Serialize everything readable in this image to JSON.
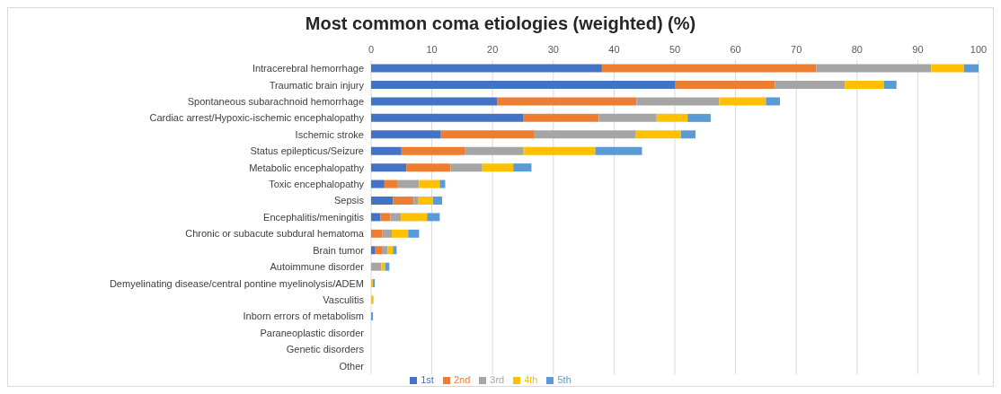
{
  "chart_data": {
    "type": "bar",
    "orientation": "horizontal",
    "stacked": true,
    "title": "Most common coma etiologies (weighted) (%)",
    "categories": [
      "Intracerebral hemorrhage",
      "Traumatic brain injury",
      "Spontaneous subarachnoid hemorrhage",
      "Cardiac arrest/Hypoxic-ischemic encephalopathy",
      "Ischemic stroke",
      "Status epilepticus/Seizure",
      "Metabolic encephalopathy",
      "Toxic encephalopathy",
      "Sepsis",
      "Encephalitis/meningitis",
      "Chronic or subacute subdural hematoma",
      "Brain tumor",
      "Autoimmune disorder",
      "Demyelinating disease/central pontine myelinolysis/ADEM",
      "Vasculitis",
      "Inborn errors of metabolism",
      "Paraneoplastic disorder",
      "Genetic disorders",
      "Other"
    ],
    "series": [
      {
        "name": "1st",
        "color": "#4472c4",
        "values": [
          38,
          50,
          20.8,
          25.1,
          11.5,
          5.0,
          5.8,
          2.2,
          3.6,
          1.5,
          0,
          0.7,
          0,
          0,
          0,
          0,
          0,
          0,
          0
        ]
      },
      {
        "name": "2nd",
        "color": "#ed7d31",
        "values": [
          35.3,
          16.5,
          22.9,
          12.4,
          15.4,
          10.4,
          7.3,
          2.2,
          3.4,
          1.7,
          1.8,
          1.2,
          0,
          0,
          0,
          0,
          0,
          0,
          0
        ]
      },
      {
        "name": "3rd",
        "color": "#a5a5a5",
        "values": [
          18.9,
          11.5,
          13.6,
          9.5,
          16.6,
          9.7,
          5.2,
          3.5,
          0.8,
          1.7,
          1.6,
          0.8,
          1.7,
          0,
          0,
          0,
          0,
          0,
          0
        ]
      },
      {
        "name": "4th",
        "color": "#ffc000",
        "values": [
          5.4,
          6.4,
          7.7,
          5.1,
          7.5,
          11.8,
          5.1,
          3.4,
          2.4,
          4.3,
          2.7,
          0.9,
          0.6,
          0.3,
          0.4,
          0,
          0,
          0,
          0
        ]
      },
      {
        "name": "5th",
        "color": "#5b9bd5",
        "values": [
          2.4,
          2.1,
          2.3,
          3.8,
          2.4,
          7.7,
          3.0,
          0.9,
          1.5,
          2.1,
          1.8,
          0.6,
          0.7,
          0.3,
          0,
          0.3,
          0,
          0,
          0
        ]
      }
    ],
    "xlim": [
      0,
      100
    ],
    "xticks": [
      0,
      10,
      20,
      30,
      40,
      50,
      60,
      70,
      80,
      90,
      100
    ],
    "grid": "x",
    "legend": "bottom"
  }
}
